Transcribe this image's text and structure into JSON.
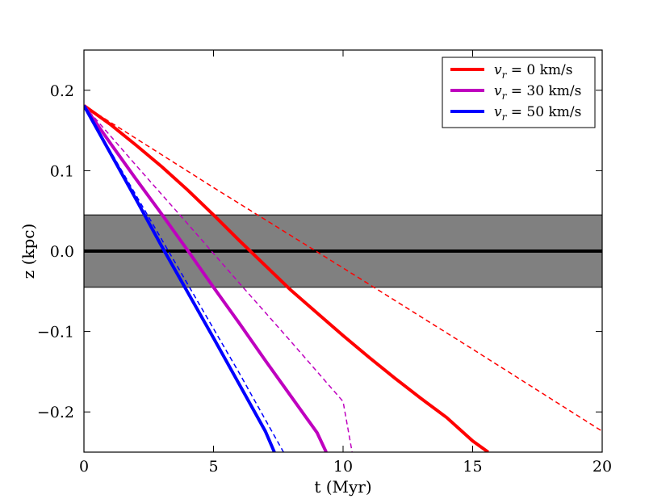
{
  "chart_data": {
    "type": "line",
    "xlabel": "t (Myr)",
    "ylabel": "z (kpc)",
    "xlim": [
      0,
      20
    ],
    "ylim": [
      -0.25,
      0.25
    ],
    "xticks": [
      0,
      5,
      10,
      15,
      20
    ],
    "xtick_labels": [
      "0",
      "5",
      "10",
      "15",
      "20"
    ],
    "yticks": [
      0.2,
      0.1,
      0.0,
      -0.1,
      -0.2
    ],
    "ytick_labels": [
      "0.2",
      "0.1",
      "0.0",
      "−0.1",
      "−0.2"
    ],
    "grid": false,
    "legend_position": "top-right",
    "shaded_band": {
      "y_min": -0.045,
      "y_max": 0.045,
      "color": "#808080"
    },
    "midplane_line": {
      "y": 0.0,
      "color": "#000000"
    },
    "series": [
      {
        "name": "v_r = 0 km/s",
        "legend_symbol": "v",
        "legend_sub": "r",
        "legend_value": " = 0 km/s",
        "color": "#ff0000",
        "solid": {
          "x": [
            0,
            1,
            2,
            3,
            4,
            5,
            6,
            7,
            8,
            9,
            10,
            11,
            12,
            13,
            14,
            15,
            15.6
          ],
          "y": [
            0.181,
            0.158,
            0.132,
            0.105,
            0.076,
            0.045,
            0.013,
            -0.018,
            -0.049,
            -0.077,
            -0.105,
            -0.132,
            -0.158,
            -0.183,
            -0.207,
            -0.236,
            -0.25
          ]
        },
        "dashed": {
          "x": [
            0,
            5,
            10,
            15,
            20
          ],
          "y": [
            0.181,
            0.079,
            -0.021,
            -0.122,
            -0.224
          ]
        }
      },
      {
        "name": "v_r = 30 km/s",
        "legend_symbol": "v",
        "legend_sub": "r",
        "legend_value": " = 30 km/s",
        "color": "#bf00bf",
        "solid": {
          "x": [
            0,
            1,
            2,
            3,
            4,
            5,
            6,
            7,
            8,
            9,
            9.35
          ],
          "y": [
            0.181,
            0.135,
            0.09,
            0.046,
            0.001,
            -0.045,
            -0.09,
            -0.136,
            -0.181,
            -0.226,
            -0.25
          ]
        },
        "dashed": {
          "x": [
            0,
            2,
            4,
            6,
            8,
            10,
            10.35
          ],
          "y": [
            0.181,
            0.107,
            0.034,
            -0.04,
            -0.113,
            -0.187,
            -0.25
          ]
        }
      },
      {
        "name": "v_r = 50 km/s",
        "legend_symbol": "v",
        "legend_sub": "r",
        "legend_value": " = 50 km/s",
        "color": "#0000ff",
        "solid": {
          "x": [
            0,
            1,
            2,
            3,
            4,
            5,
            6,
            7,
            7.35
          ],
          "y": [
            0.181,
            0.123,
            0.065,
            0.006,
            -0.051,
            -0.108,
            -0.166,
            -0.224,
            -0.25
          ]
        },
        "dashed": {
          "x": [
            0,
            2,
            4,
            6,
            7.7
          ],
          "y": [
            0.181,
            0.07,
            -0.041,
            -0.152,
            -0.25
          ]
        }
      }
    ]
  }
}
